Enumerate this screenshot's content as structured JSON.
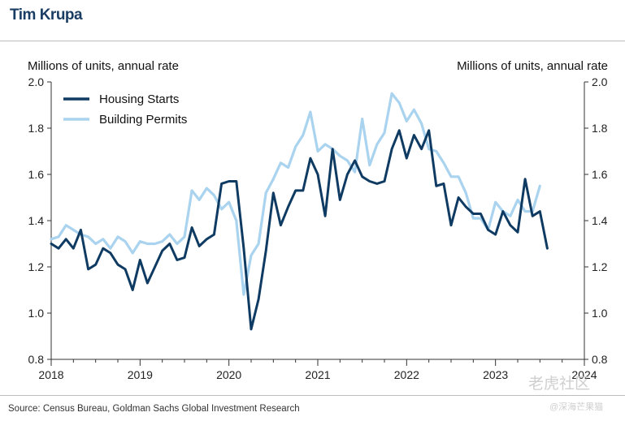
{
  "header": {
    "author": "Tim Krupa"
  },
  "footer": {
    "source": "Source: Census Bureau, Goldman Sachs Global Investment Research"
  },
  "watermark": {
    "line1": "老虎社区",
    "line2": "@深海芒果猫"
  },
  "chart_data": {
    "type": "line",
    "ylabel_left": "Millions of units, annual rate",
    "ylabel_right": "Millions of units, annual rate",
    "ylim": [
      0.8,
      2.0
    ],
    "yticks": [
      "0.8",
      "1.0",
      "1.2",
      "1.4",
      "1.6",
      "1.8",
      "2.0"
    ],
    "xlim": [
      2018.0,
      2024.0
    ],
    "xticks": [
      "2018",
      "2019",
      "2020",
      "2021",
      "2022",
      "2023",
      "2024"
    ],
    "grid": false,
    "legend_position": "top-left",
    "colors": {
      "starts": "#0f3b63",
      "permits": "#a9d3ee"
    },
    "series": [
      {
        "name": "Housing Starts",
        "start": 2018.0,
        "step_months": 1,
        "values": [
          1.3,
          1.28,
          1.32,
          1.28,
          1.36,
          1.19,
          1.21,
          1.28,
          1.26,
          1.21,
          1.19,
          1.1,
          1.23,
          1.13,
          1.2,
          1.27,
          1.3,
          1.23,
          1.24,
          1.37,
          1.29,
          1.32,
          1.34,
          1.56,
          1.57,
          1.57,
          1.28,
          0.93,
          1.06,
          1.27,
          1.52,
          1.38,
          1.46,
          1.53,
          1.53,
          1.67,
          1.6,
          1.42,
          1.71,
          1.49,
          1.6,
          1.66,
          1.59,
          1.57,
          1.56,
          1.57,
          1.71,
          1.79,
          1.67,
          1.77,
          1.71,
          1.79,
          1.55,
          1.56,
          1.38,
          1.5,
          1.46,
          1.43,
          1.43,
          1.36,
          1.34,
          1.44,
          1.38,
          1.35,
          1.58,
          1.42,
          1.44,
          1.28
        ]
      },
      {
        "name": "Building Permits",
        "start": 2018.0,
        "step_months": 1,
        "values": [
          1.32,
          1.33,
          1.38,
          1.36,
          1.34,
          1.33,
          1.3,
          1.32,
          1.28,
          1.33,
          1.31,
          1.26,
          1.31,
          1.3,
          1.3,
          1.31,
          1.34,
          1.3,
          1.33,
          1.53,
          1.49,
          1.54,
          1.51,
          1.45,
          1.48,
          1.4,
          1.08,
          1.25,
          1.3,
          1.52,
          1.58,
          1.65,
          1.63,
          1.72,
          1.77,
          1.87,
          1.7,
          1.73,
          1.71,
          1.68,
          1.66,
          1.61,
          1.84,
          1.64,
          1.73,
          1.78,
          1.95,
          1.91,
          1.83,
          1.88,
          1.82,
          1.71,
          1.7,
          1.65,
          1.59,
          1.59,
          1.52,
          1.41,
          1.41,
          1.36,
          1.48,
          1.44,
          1.42,
          1.49,
          1.44,
          1.44,
          1.55
        ]
      }
    ]
  }
}
